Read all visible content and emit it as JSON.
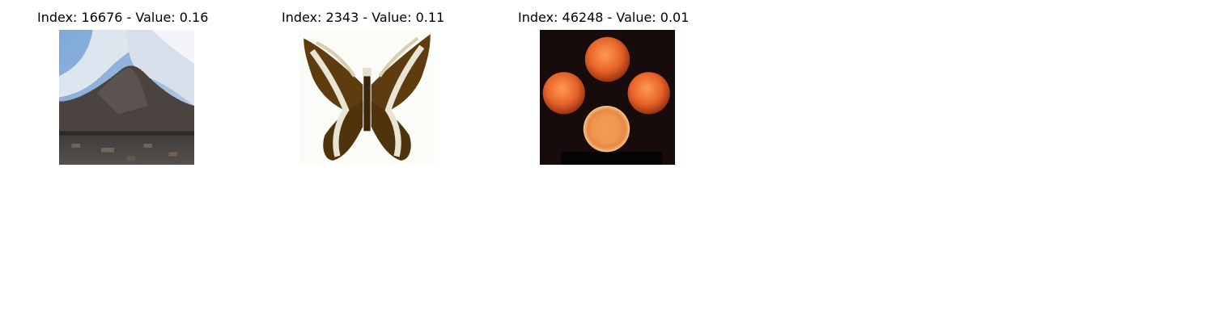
{
  "panels": [
    {
      "title": "Index: 16676 - Value: 0.16",
      "image": "mountain-landscape"
    },
    {
      "title": "Index: 2343 - Value: 0.11",
      "image": "butterfly"
    },
    {
      "title": "Index: 46248 - Value: 0.01",
      "image": "four-oranges"
    }
  ]
}
